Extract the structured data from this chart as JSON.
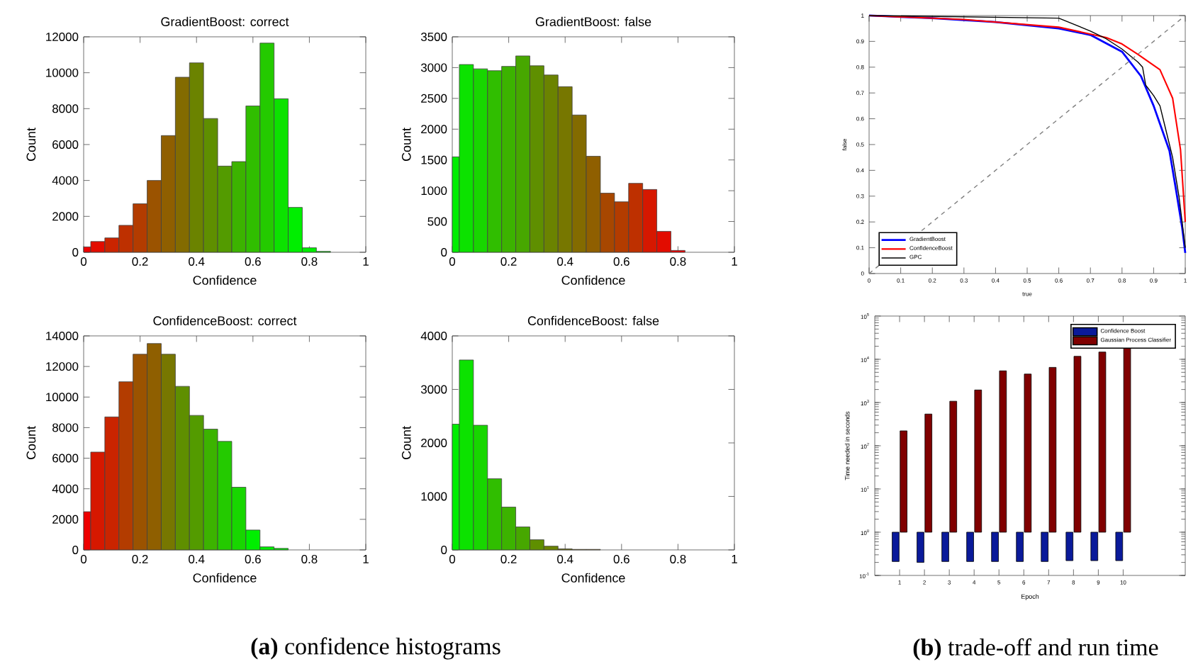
{
  "chart_data": [
    {
      "type": "histogram",
      "title": "GradientBoost: correct",
      "xlabel": "Confidence",
      "ylabel": "Count",
      "bins": [
        0,
        0.025,
        0.075,
        0.125,
        0.175,
        0.225,
        0.275,
        0.325,
        0.375,
        0.425,
        0.475,
        0.525,
        0.575,
        0.625,
        0.675,
        0.725,
        0.775,
        0.825,
        0.875
      ],
      "values": [
        300,
        600,
        800,
        1500,
        2700,
        4000,
        6500,
        9750,
        10550,
        7450,
        4800,
        5050,
        8150,
        11650,
        8550,
        2500,
        250,
        50
      ],
      "colors": [
        "#ee0000",
        "#e20c00",
        "#ca2400",
        "#be3000",
        "#b33c00",
        "#9b5300",
        "#8f5f00",
        "#836b00",
        "#6b8300",
        "#5f8f00",
        "#539b00",
        "#3cb300",
        "#30be00",
        "#24ca00",
        "#0ce200",
        "#00ee00",
        "#00ee00",
        "#00ee00"
      ],
      "xlim": [
        0,
        1
      ],
      "ylim": [
        0,
        12000
      ],
      "xticks": [
        0,
        0.2,
        0.4,
        0.6,
        0.8,
        1
      ],
      "yticks": [
        0,
        2000,
        4000,
        6000,
        8000,
        10000,
        12000
      ]
    },
    {
      "type": "histogram",
      "title": "GradientBoost: false",
      "xlabel": "Confidence",
      "ylabel": "Count",
      "bins": [
        0,
        0.025,
        0.075,
        0.125,
        0.175,
        0.225,
        0.275,
        0.325,
        0.375,
        0.425,
        0.475,
        0.525,
        0.575,
        0.625,
        0.675,
        0.725,
        0.775,
        0.825
      ],
      "values": [
        1550,
        3050,
        2980,
        2950,
        3020,
        3190,
        3030,
        2880,
        2690,
        2230,
        1560,
        960,
        820,
        1120,
        1020,
        340,
        30
      ],
      "colors": [
        "#00ee00",
        "#0ce200",
        "#18d600",
        "#30be00",
        "#3cb300",
        "#47a700",
        "#5f8f00",
        "#6b8300",
        "#777700",
        "#836b00",
        "#8f5f00",
        "#a74700",
        "#b33c00",
        "#be3000",
        "#d61800",
        "#e20c00",
        "#ee0000"
      ],
      "xlim": [
        0,
        1
      ],
      "ylim": [
        0,
        3500
      ],
      "xticks": [
        0,
        0.2,
        0.4,
        0.6,
        0.8,
        1
      ],
      "yticks": [
        0,
        500,
        1000,
        1500,
        2000,
        2500,
        3000,
        3500
      ]
    },
    {
      "type": "histogram",
      "title": "ConfidenceBoost: correct",
      "xlabel": "Confidence",
      "ylabel": "Count",
      "bins": [
        0,
        0.025,
        0.075,
        0.125,
        0.175,
        0.225,
        0.275,
        0.325,
        0.375,
        0.425,
        0.475,
        0.525,
        0.575,
        0.625,
        0.675,
        0.725
      ],
      "values": [
        2500,
        6400,
        8700,
        11000,
        12800,
        13500,
        12800,
        10700,
        8800,
        7900,
        7100,
        4100,
        1300,
        200,
        100
      ],
      "colors": [
        "#ee0000",
        "#d61800",
        "#ca2400",
        "#b33c00",
        "#9b5300",
        "#8f5f00",
        "#777700",
        "#5f8f00",
        "#539b00",
        "#3cb300",
        "#24ca00",
        "#18d600",
        "#00ee00",
        "#00ee00",
        "#00ee00"
      ],
      "xlim": [
        0,
        1
      ],
      "ylim": [
        0,
        14000
      ],
      "xticks": [
        0,
        0.2,
        0.4,
        0.6,
        0.8,
        1
      ],
      "yticks": [
        0,
        2000,
        4000,
        6000,
        8000,
        10000,
        12000,
        14000
      ],
      "annotations": [
        "**(a)** confidence histograms"
      ]
    },
    {
      "type": "histogram",
      "title": "ConfidenceBoost: false",
      "xlabel": "Confidence",
      "ylabel": "Count",
      "bins": [
        0,
        0.025,
        0.075,
        0.125,
        0.175,
        0.225,
        0.275,
        0.325,
        0.375,
        0.425,
        0.475,
        0.525
      ],
      "values": [
        2350,
        3550,
        2330,
        1330,
        800,
        430,
        190,
        70,
        20,
        10,
        10
      ],
      "colors": [
        "#00ee00",
        "#0ce200",
        "#18d600",
        "#30be00",
        "#3cb300",
        "#47a700",
        "#5f8f00",
        "#6b8300",
        "#777700",
        "#836b00",
        "#8f5f00"
      ],
      "xlim": [
        0,
        1
      ],
      "ylim": [
        0,
        4000
      ],
      "xticks": [
        0,
        0.2,
        0.4,
        0.6,
        0.8,
        1
      ],
      "yticks": [
        0,
        1000,
        2000,
        3000,
        4000
      ]
    },
    {
      "type": "line",
      "xlabel": "true",
      "ylabel": "false",
      "legend": "bottom left",
      "marker": "none",
      "series": [
        {
          "name": "GradientBoost",
          "color": "#0000ff",
          "x": [
            0,
            0.2,
            0.4,
            0.6,
            0.7,
            0.8,
            0.86,
            0.9,
            0.95,
            0.97,
            0.99,
            1
          ],
          "values": [
            1,
            0.99,
            0.975,
            0.95,
            0.925,
            0.86,
            0.765,
            0.65,
            0.476,
            0.33,
            0.18,
            0.08
          ]
        },
        {
          "name": "ConfidenceBoost",
          "color": "#ff0000",
          "x": [
            0,
            0.3,
            0.6,
            0.75,
            0.8,
            0.85,
            0.92,
            0.96,
            0.97,
            0.985,
            1
          ],
          "values": [
            1,
            0.985,
            0.955,
            0.915,
            0.89,
            0.85,
            0.79,
            0.68,
            0.6,
            0.48,
            0.2
          ]
        },
        {
          "name": "GPC",
          "color": "#000000",
          "x": [
            0,
            0.6,
            0.7,
            0.75,
            0.8,
            0.85,
            0.865,
            0.875,
            0.9,
            0.92,
            0.94,
            0.96,
            0.98,
            1
          ],
          "values": [
            1,
            0.99,
            0.94,
            0.91,
            0.87,
            0.82,
            0.8,
            0.73,
            0.69,
            0.65,
            0.55,
            0.45,
            0.3,
            0.1
          ]
        },
        {
          "color": "#808080",
          "line_style": "dashed",
          "x": [
            0,
            1
          ],
          "values": [
            0,
            1
          ]
        }
      ],
      "xlim": [
        0,
        1
      ],
      "ylim": [
        0,
        1
      ],
      "xticks": [
        0,
        0.1,
        0.2,
        0.3,
        0.4,
        0.5,
        0.6,
        0.7,
        0.8,
        0.9,
        1
      ],
      "yticks": [
        0,
        0.1,
        0.2,
        0.3,
        0.4,
        0.5,
        0.6,
        0.7,
        0.8,
        0.9,
        1
      ]
    },
    {
      "type": "bar",
      "xlabel": "Epoch",
      "ylabel": "Time needed in seconds",
      "log": "y",
      "legend": "top right",
      "categories": [
        "1",
        "2",
        "3",
        "4",
        "5",
        "6",
        "7",
        "8",
        "9",
        "10"
      ],
      "series": [
        {
          "name": "Confidence Boost",
          "color": "#0a1a9a",
          "base": [
            1,
            1,
            1,
            1,
            1,
            1,
            1,
            1,
            1,
            1
          ],
          "values": [
            -0.79,
            -0.8,
            -0.79,
            -0.79,
            -0.79,
            -0.79,
            -0.79,
            -0.78,
            -0.78,
            -0.78
          ]
        },
        {
          "name": "Gaussian Process Classifier",
          "color": "#800000",
          "base": [
            1,
            1,
            1,
            1,
            1,
            1,
            1,
            1,
            1,
            1
          ],
          "values": [
            220,
            540,
            1070,
            1950,
            5400,
            4550,
            6500,
            11700,
            14700,
            20000
          ]
        }
      ],
      "ylim": [
        0.1,
        100000
      ],
      "yticks": [
        {
          "value": 0.1,
          "label": "10$^{-1}$"
        },
        {
          "value": 1,
          "label": "10$^{0}$"
        },
        {
          "value": 10,
          "label": "10$^{1}$"
        },
        {
          "value": 100,
          "label": "10$^{2}$"
        },
        {
          "value": 1000,
          "label": "10$^{3}$"
        },
        {
          "value": 10000,
          "label": "10$^{4}$"
        },
        {
          "value": 100000,
          "label": "10$^{5}$"
        }
      ],
      "annotations": [
        "**(b)** trade-off and run time"
      ]
    }
  ]
}
